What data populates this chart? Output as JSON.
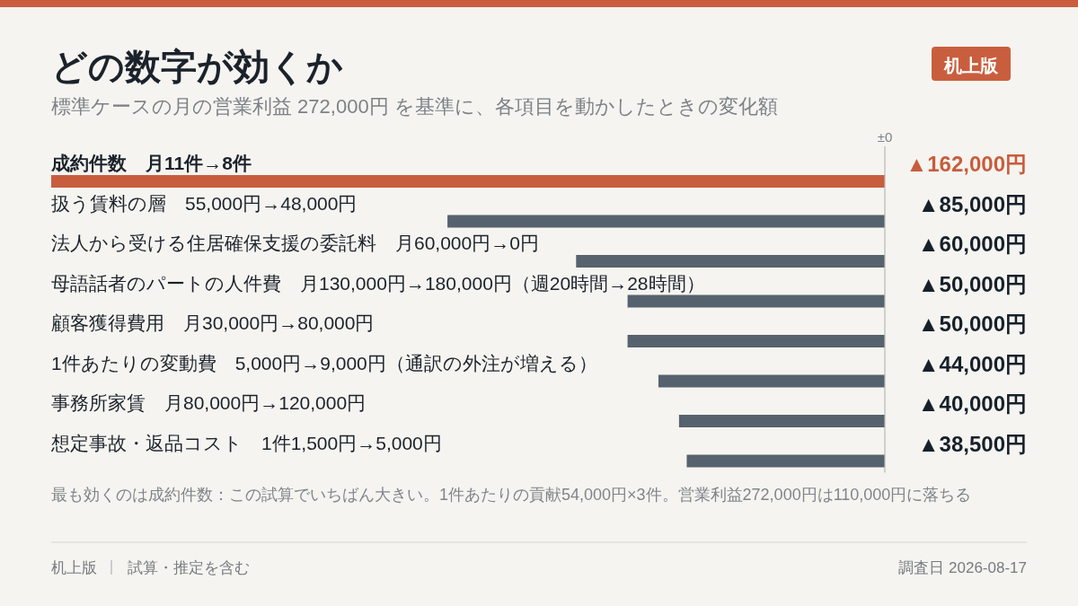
{
  "chart_data": {
    "type": "bar",
    "orientation": "horizontal",
    "title": "どの数字が効くか",
    "subtitle": "標準ケースの月の営業利益 272,000円 を基準に、各項目を動かしたときの変化額",
    "categories": [
      "成約件数　月11件→8件",
      "扱う賃料の層　55,000円→48,000円",
      "法人から受ける住居確保支援の委託料　月60,000円→0円",
      "母語話者のパートの人件費　月130,000円→180,000円（週20時間→28時間）",
      "顧客獲得費用　月30,000円→80,000円",
      "1件あたりの変動費　5,000円→9,000円（通訳の外注が増える）",
      "事務所家賃　月80,000円→120,000円",
      "想定事故・返品コスト　1件1,500円→5,000円"
    ],
    "values": [
      162000,
      85000,
      60000,
      50000,
      50000,
      44000,
      40000,
      38500
    ],
    "colors": [
      "#c85d3d",
      "#56626d",
      "#56626d",
      "#56626d",
      "#56626d",
      "#56626d",
      "#56626d",
      "#56626d"
    ],
    "value_labels": [
      "▲162,000円",
      "▲85,000円",
      "▲60,000円",
      "▲50,000円",
      "▲50,000円",
      "▲44,000円",
      "▲40,000円",
      "▲38,500円"
    ],
    "xlim": [
      162000,
      0
    ],
    "annotations": [
      "±0",
      "机上版",
      "最も効くのは成約件数：この試算でいちばん大きい。1件あたりの貢献54,000円×3件。営業利益272,000円は110,000円に落ちる",
      "机上版",
      "試算・推定を含む",
      "調査日 2026-08-17"
    ]
  }
}
